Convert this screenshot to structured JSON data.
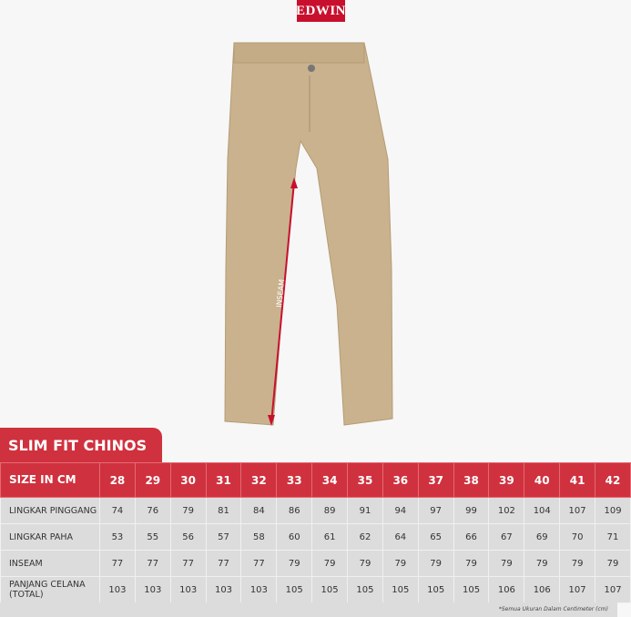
{
  "brand": {
    "logo_text": "EDWIN",
    "color": "#c8102e"
  },
  "product_image": {
    "measurement_label": "INSEAM",
    "garment_color": "#c9b28d",
    "arrow_color": "#c8102e"
  },
  "size_chart": {
    "title": "SLIM FIT CHINOS",
    "header_label": "SIZE IN CM",
    "sizes": [
      "28",
      "29",
      "30",
      "31",
      "32",
      "33",
      "34",
      "35",
      "36",
      "37",
      "38",
      "39",
      "40",
      "41",
      "42"
    ],
    "rows": [
      {
        "label": "LINGKAR PINGGANG",
        "values": [
          "74",
          "76",
          "79",
          "81",
          "84",
          "86",
          "89",
          "91",
          "94",
          "97",
          "99",
          "102",
          "104",
          "107",
          "109"
        ]
      },
      {
        "label": "LINGKAR PAHA",
        "values": [
          "53",
          "55",
          "56",
          "57",
          "58",
          "60",
          "61",
          "62",
          "64",
          "65",
          "66",
          "67",
          "69",
          "70",
          "71"
        ]
      },
      {
        "label": "INSEAM",
        "values": [
          "77",
          "77",
          "77",
          "77",
          "77",
          "79",
          "79",
          "79",
          "79",
          "79",
          "79",
          "79",
          "79",
          "79",
          "79"
        ]
      },
      {
        "label": "PANJANG CELANA (TOTAL)",
        "values": [
          "103",
          "103",
          "103",
          "103",
          "103",
          "105",
          "105",
          "105",
          "105",
          "105",
          "105",
          "106",
          "106",
          "107",
          "107"
        ]
      }
    ],
    "accent_color": "#d0313e",
    "note": "*Semua Ukuran Dalam Centimeter (cm)"
  }
}
